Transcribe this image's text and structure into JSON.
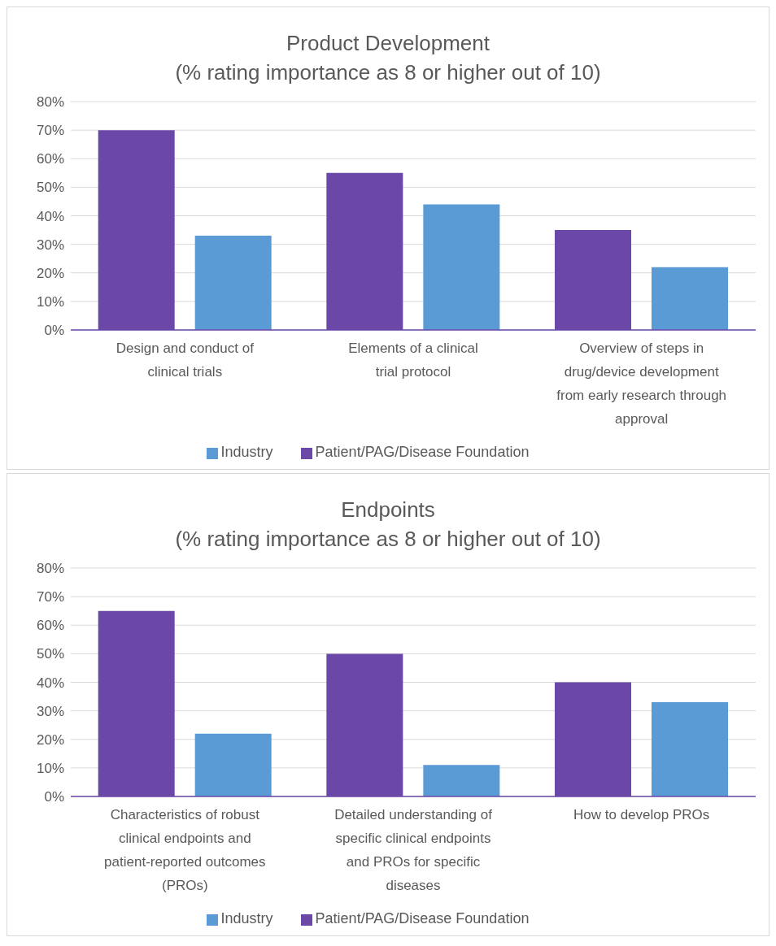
{
  "chart_data": [
    {
      "type": "bar",
      "title": "Product Development",
      "subtitle": "(% rating importance as 8 or higher out of 10)",
      "categories": [
        "Design and conduct of clinical trials",
        "Elements of a clinical trial protocol",
        "Overview of steps in drug/device development from early research through approval"
      ],
      "series": [
        {
          "name": "Patient/PAG/Disease Foundation",
          "color": "#6b48a8",
          "values": [
            70,
            55,
            35
          ]
        },
        {
          "name": "Industry",
          "color": "#5b9bd5",
          "values": [
            33,
            44,
            22
          ]
        }
      ],
      "ylim": [
        0,
        80
      ],
      "yticks": [
        {
          "value": 0,
          "label": "0%"
        },
        {
          "value": 10,
          "label": "10%"
        },
        {
          "value": 20,
          "label": "20%"
        },
        {
          "value": 30,
          "label": "30%"
        },
        {
          "value": 40,
          "label": "40%"
        },
        {
          "value": 50,
          "label": "50%"
        },
        {
          "value": 60,
          "label": "60%"
        },
        {
          "value": 70,
          "label": "70%"
        },
        {
          "value": 80,
          "label": "80%"
        }
      ],
      "grid": "y",
      "legend": "bottom"
    },
    {
      "type": "bar",
      "title": "Endpoints",
      "subtitle": "(% rating importance as 8 or higher out of 10)",
      "categories": [
        "Characteristics of robust clinical endpoints and patient-reported outcomes (PROs)",
        "Detailed understanding of specific clinical endpoints and PROs for specific diseases",
        "How to develop PROs"
      ],
      "series": [
        {
          "name": "Patient/PAG/Disease Foundation",
          "color": "#6b48a8",
          "values": [
            65,
            50,
            40
          ]
        },
        {
          "name": "Industry",
          "color": "#5b9bd5",
          "values": [
            22,
            11,
            33
          ]
        }
      ],
      "ylim": [
        0,
        80
      ],
      "yticks": [
        {
          "value": 0,
          "label": "0%"
        },
        {
          "value": 10,
          "label": "10%"
        },
        {
          "value": 20,
          "label": "20%"
        },
        {
          "value": 30,
          "label": "30%"
        },
        {
          "value": 40,
          "label": "40%"
        },
        {
          "value": 50,
          "label": "50%"
        },
        {
          "value": 60,
          "label": "60%"
        },
        {
          "value": 70,
          "label": "70%"
        },
        {
          "value": 80,
          "label": "80%"
        }
      ],
      "grid": "y",
      "legend": "bottom"
    }
  ]
}
